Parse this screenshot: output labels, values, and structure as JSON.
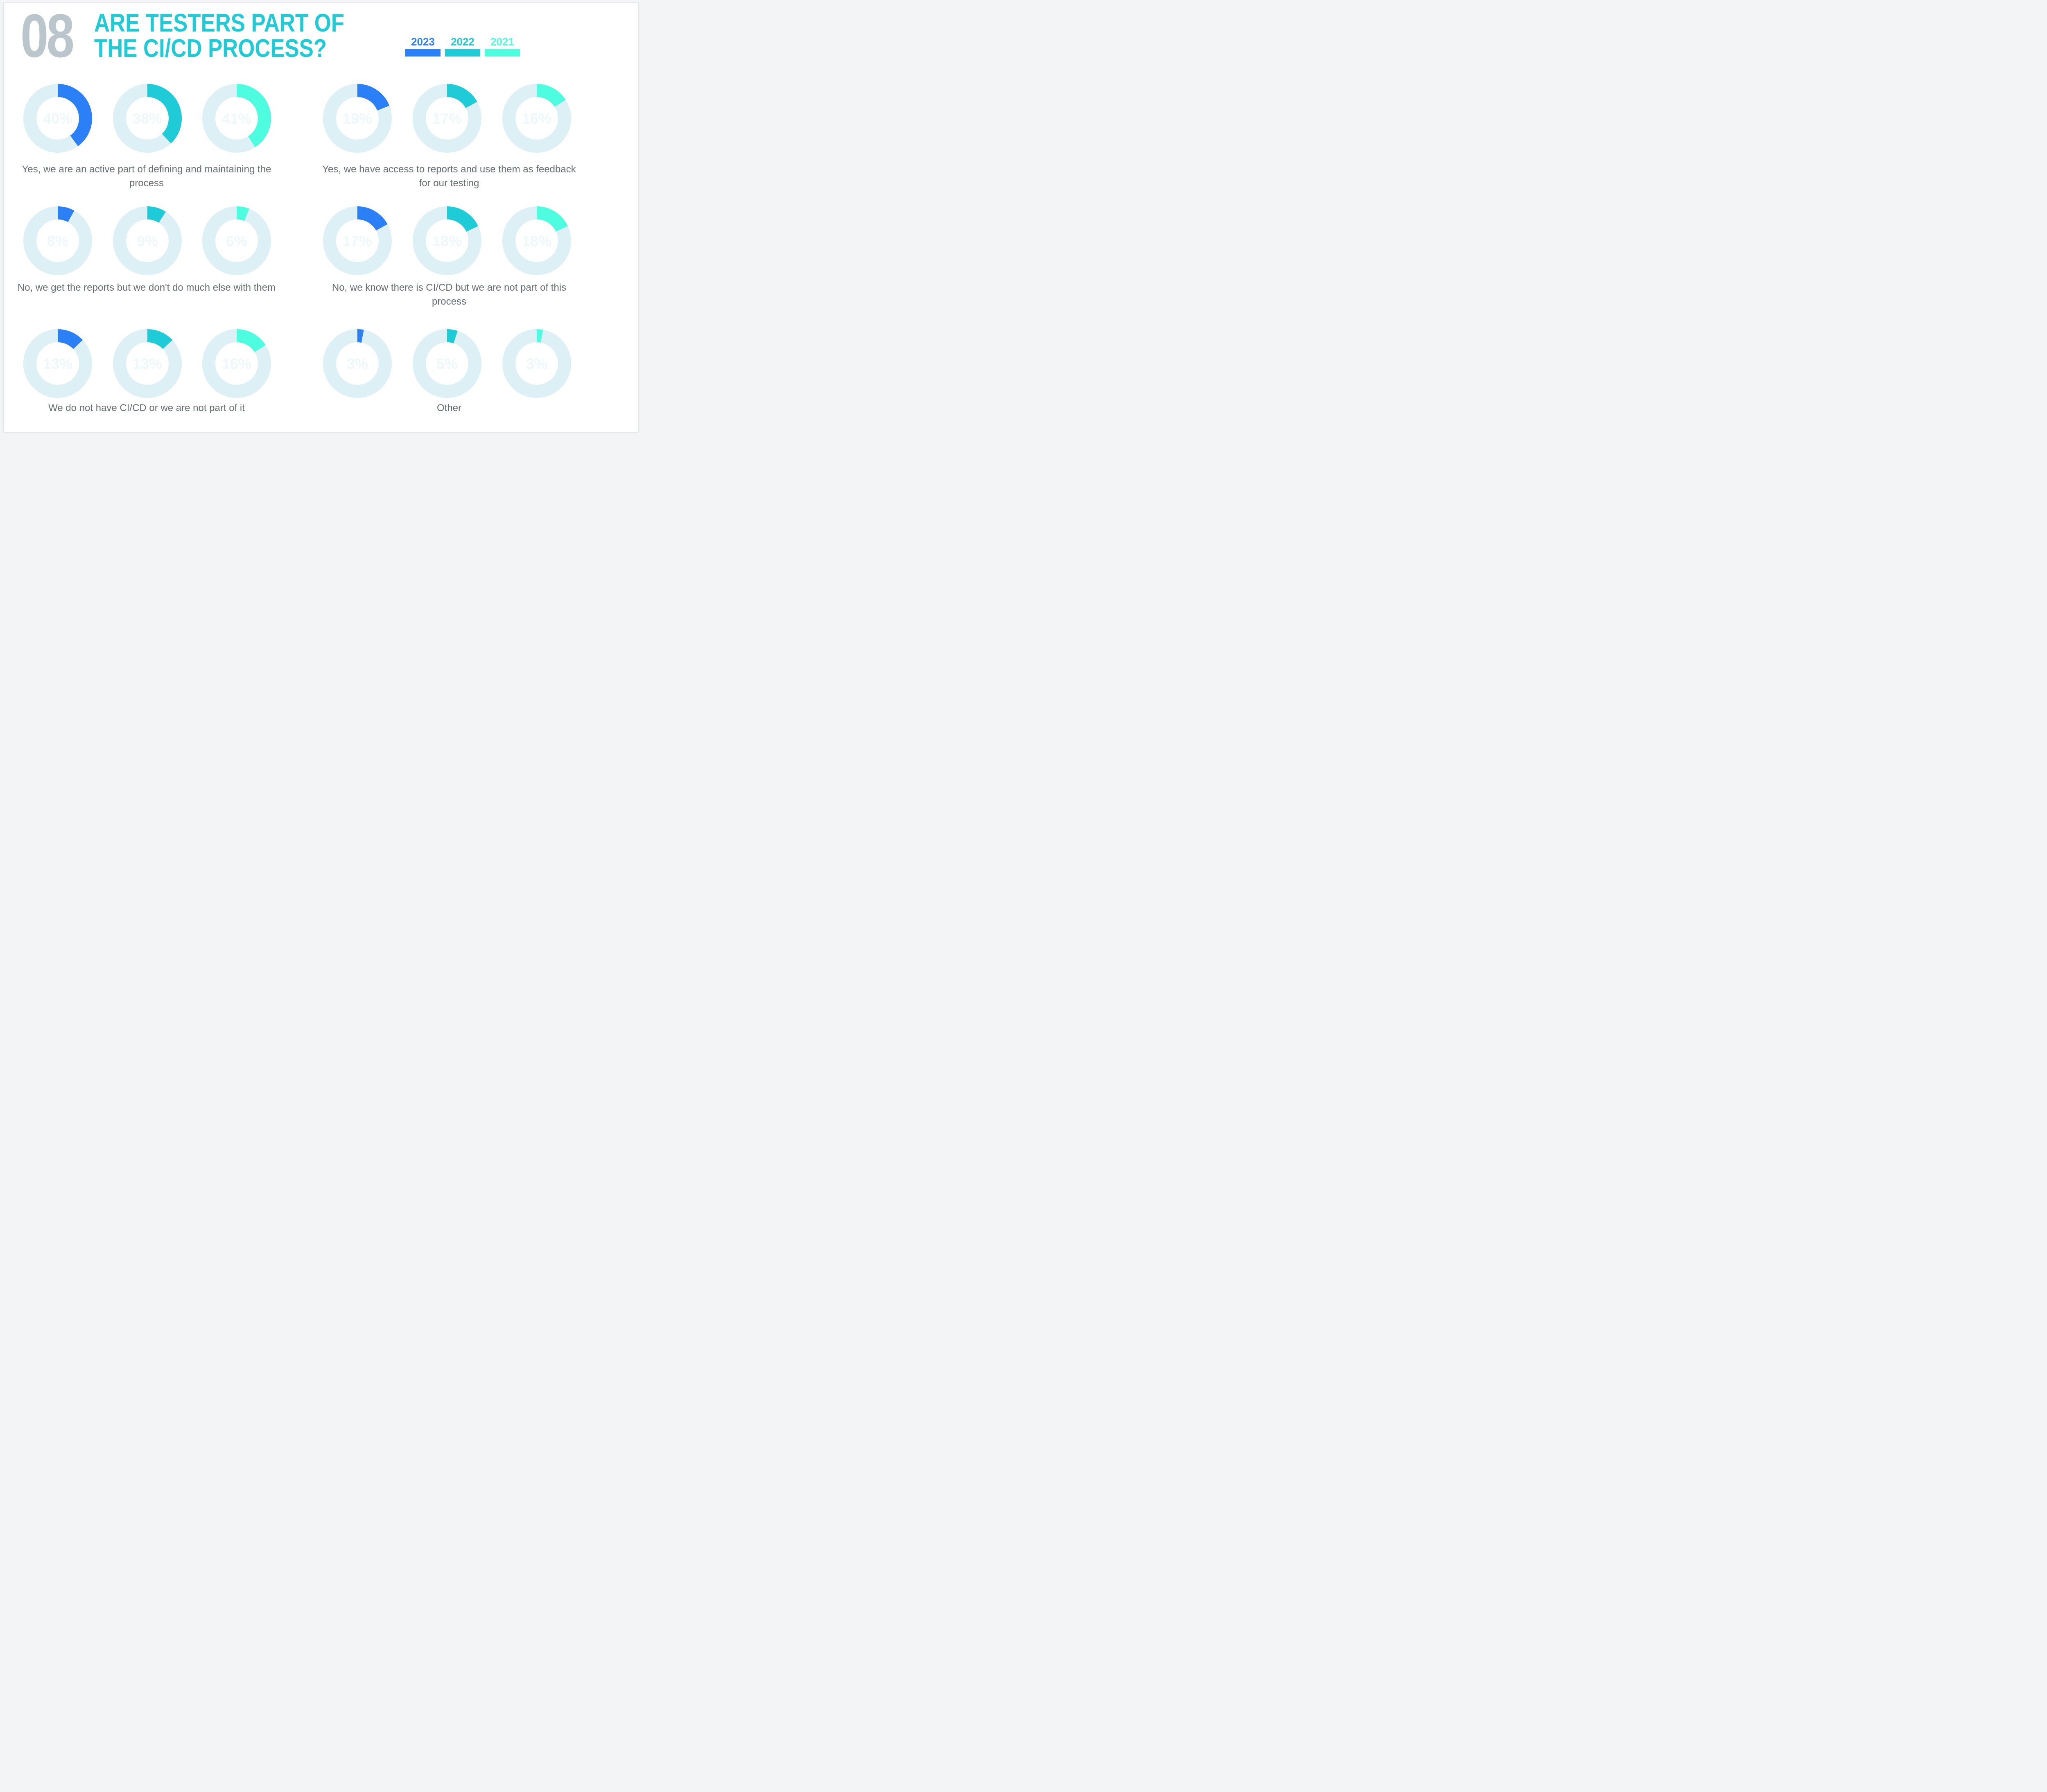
{
  "header": {
    "number": "08",
    "title_line1": "ARE TESTERS PART OF",
    "title_line2": "THE CI/CD PROCESS?"
  },
  "legend": [
    {
      "year": "2023",
      "color": "#2b80f8"
    },
    {
      "year": "2022",
      "color": "#20cbd8"
    },
    {
      "year": "2021",
      "color": "#4efde0"
    }
  ],
  "colors": {
    "track": "#dcf0f6",
    "inner_text": "#eef8fb"
  },
  "chart_data": {
    "type": "donut",
    "series_names": [
      "2023",
      "2022",
      "2021"
    ],
    "unit": "%",
    "groups": [
      {
        "label": "Yes, we are an active part of defining and maintaining the process",
        "values": [
          40,
          38,
          41
        ]
      },
      {
        "label": "Yes, we have access to reports and use them as feedback for our testing",
        "values": [
          19,
          17,
          16
        ]
      },
      {
        "label": "No, we get the reports but we don't do much else with them",
        "values": [
          8,
          9,
          6
        ]
      },
      {
        "label": "No, we know there is CI/CD but we are not part of this process",
        "values": [
          17,
          18,
          18
        ]
      },
      {
        "label": "We do not have CI/CD or we are not part of it",
        "values": [
          13,
          13,
          16
        ]
      },
      {
        "label": "Other",
        "values": [
          3,
          5,
          3
        ]
      }
    ]
  }
}
